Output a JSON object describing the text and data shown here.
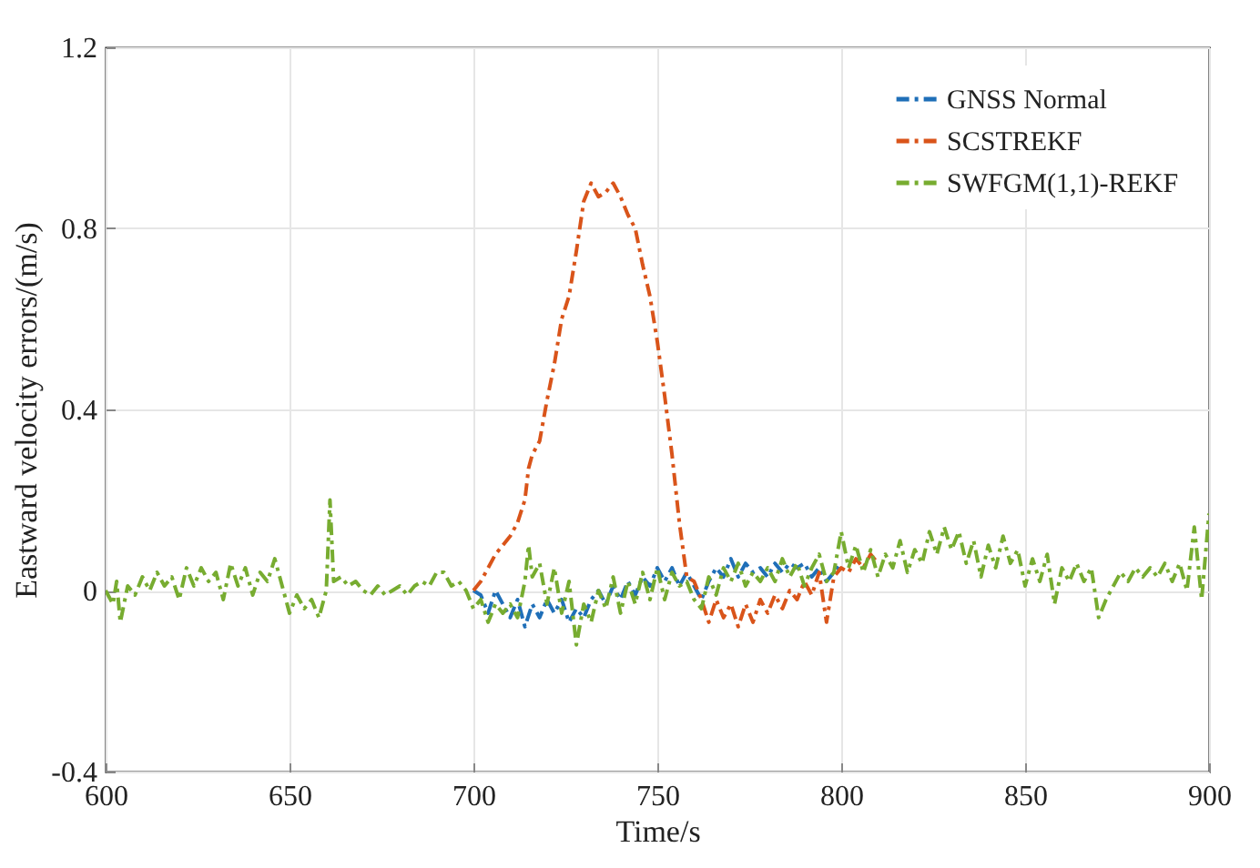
{
  "chart_data": {
    "type": "line",
    "xlabel": "Time/s",
    "ylabel": "Eastward velocity errors/(m/s)",
    "xlim": [
      600,
      900
    ],
    "xticks": [
      600,
      650,
      700,
      750,
      800,
      850,
      900
    ],
    "ylim": [
      -0.4,
      1.2
    ],
    "yticks": [
      -0.4,
      0,
      0.4,
      0.8,
      1.2
    ],
    "grid": true,
    "legend": "top right",
    "line_style": "dashed",
    "marker": "none",
    "series": [
      {
        "name": "GNSS Normal",
        "color": "#1f6fb8",
        "x": [
          700,
          702,
          704,
          706,
          708,
          710,
          712,
          714,
          716,
          718,
          720,
          722,
          724,
          726,
          728,
          730,
          732,
          734,
          736,
          738,
          740,
          742,
          744,
          746,
          748,
          750,
          752,
          754,
          756,
          758,
          760,
          762,
          764,
          766,
          768,
          770,
          772,
          774,
          776,
          778,
          780,
          782,
          784,
          786,
          788,
          790,
          792,
          794,
          796,
          798,
          800
        ],
        "values": [
          0,
          -0.01,
          -0.05,
          0.0,
          -0.03,
          -0.06,
          -0.02,
          -0.08,
          -0.03,
          -0.06,
          -0.02,
          -0.05,
          -0.02,
          -0.07,
          -0.04,
          -0.06,
          -0.02,
          0.0,
          -0.03,
          0.01,
          -0.02,
          0.02,
          -0.01,
          0.03,
          0.01,
          0.05,
          0.02,
          0.05,
          0.01,
          0.04,
          0.01,
          -0.02,
          0.02,
          0.05,
          0.03,
          0.07,
          0.03,
          0.06,
          0.04,
          0.05,
          0.03,
          0.06,
          0.04,
          0.06,
          0.05,
          0.06,
          0.03,
          0.05,
          0.02,
          0.04,
          0.06
        ]
      },
      {
        "name": "SCSTREKF",
        "color": "#d9541a",
        "x": [
          700,
          702,
          704,
          706,
          708,
          710,
          712,
          714,
          715,
          716,
          718,
          720,
          722,
          724,
          726,
          728,
          730,
          732,
          734,
          736,
          738,
          740,
          742,
          744,
          746,
          748,
          750,
          752,
          754,
          756,
          758,
          760,
          762,
          764,
          766,
          768,
          770,
          772,
          774,
          776,
          778,
          780,
          782,
          784,
          786,
          788,
          790,
          792,
          794,
          796,
          798,
          800,
          802,
          804,
          806,
          808,
          810
        ],
        "values": [
          0,
          0.02,
          0.05,
          0.08,
          0.1,
          0.12,
          0.15,
          0.2,
          0.27,
          0.3,
          0.33,
          0.42,
          0.5,
          0.6,
          0.65,
          0.75,
          0.86,
          0.9,
          0.87,
          0.88,
          0.9,
          0.87,
          0.83,
          0.8,
          0.72,
          0.65,
          0.55,
          0.43,
          0.3,
          0.15,
          0.03,
          0.02,
          -0.02,
          -0.07,
          -0.02,
          -0.06,
          -0.03,
          -0.08,
          -0.03,
          -0.07,
          -0.02,
          -0.05,
          -0.01,
          -0.04,
          0.0,
          -0.02,
          0.02,
          -0.01,
          0.04,
          -0.07,
          0.03,
          0.05,
          0.04,
          0.07,
          0.05,
          0.08,
          0.06
        ]
      },
      {
        "name": "SWFGM(1,1)-REKF",
        "color": "#77ac30",
        "x": [
          600,
          602,
          603,
          604,
          606,
          608,
          610,
          612,
          614,
          616,
          618,
          620,
          622,
          624,
          626,
          628,
          630,
          632,
          634,
          636,
          638,
          640,
          642,
          644,
          646,
          648,
          650,
          652,
          654,
          656,
          658,
          660,
          661,
          662,
          664,
          666,
          668,
          670,
          672,
          674,
          676,
          678,
          680,
          682,
          684,
          686,
          688,
          690,
          692,
          694,
          696,
          698,
          700,
          702,
          704,
          706,
          708,
          710,
          712,
          714,
          715,
          716,
          718,
          720,
          722,
          724,
          726,
          728,
          730,
          732,
          734,
          736,
          738,
          740,
          742,
          744,
          746,
          748,
          750,
          752,
          754,
          756,
          758,
          760,
          762,
          764,
          766,
          768,
          770,
          772,
          774,
          776,
          778,
          780,
          782,
          784,
          786,
          788,
          790,
          792,
          794,
          796,
          798,
          800,
          802,
          804,
          806,
          808,
          810,
          812,
          814,
          816,
          818,
          820,
          822,
          824,
          826,
          828,
          830,
          832,
          834,
          836,
          838,
          840,
          842,
          844,
          846,
          848,
          850,
          852,
          854,
          856,
          858,
          860,
          862,
          864,
          866,
          868,
          870,
          872,
          874,
          876,
          878,
          880,
          882,
          884,
          886,
          888,
          890,
          892,
          894,
          896,
          898,
          900
        ],
        "values": [
          0,
          -0.03,
          0.02,
          -0.07,
          0.01,
          -0.01,
          0.03,
          0,
          0.04,
          0.01,
          0.03,
          -0.02,
          0.05,
          0.01,
          0.05,
          0.02,
          0.04,
          -0.02,
          0.06,
          0.01,
          0.05,
          -0.01,
          0.04,
          0.02,
          0.07,
          0.01,
          -0.05,
          -0.01,
          -0.04,
          -0.02,
          -0.06,
          0.0,
          0.2,
          0.02,
          0.03,
          0.01,
          0.02,
          0.0,
          -0.01,
          0.01,
          -0.01,
          0,
          0.01,
          -0.01,
          0.01,
          0.02,
          0.01,
          0.04,
          0.04,
          0.01,
          0.02,
          0.0,
          -0.04,
          -0.02,
          -0.07,
          -0.03,
          -0.05,
          -0.03,
          -0.06,
          0.02,
          0.1,
          0.03,
          0.06,
          -0.03,
          0.05,
          -0.05,
          0.02,
          -0.12,
          -0.03,
          -0.07,
          0.0,
          -0.04,
          0.03,
          -0.05,
          0.02,
          -0.03,
          0.04,
          -0.02,
          0.05,
          -0.02,
          0.04,
          0.01,
          0.02,
          -0.02,
          -0.04,
          0.03,
          -0.01,
          0.05,
          0.02,
          0.06,
          0.01,
          0.04,
          0.02,
          0.05,
          0.02,
          0.07,
          0.03,
          0.06,
          0.01,
          0.05,
          0.08,
          0.02,
          0.04,
          0.13,
          0.05,
          0.1,
          0.04,
          0.09,
          0.03,
          0.08,
          0.05,
          0.11,
          0.04,
          0.09,
          0.06,
          0.13,
          0.08,
          0.14,
          0.09,
          0.13,
          0.06,
          0.11,
          0.03,
          0.1,
          0.05,
          0.12,
          0.06,
          0.09,
          0.01,
          0.07,
          0.02,
          0.08,
          -0.03,
          0.05,
          0.02,
          0.06,
          0.02,
          0.05,
          -0.06,
          -0.02,
          0.01,
          0.04,
          0.02,
          0.05,
          0.03,
          0.05,
          0.03,
          0.06,
          0.02,
          0.06,
          0.0,
          0.14,
          -0.02,
          0.17
        ]
      }
    ]
  }
}
